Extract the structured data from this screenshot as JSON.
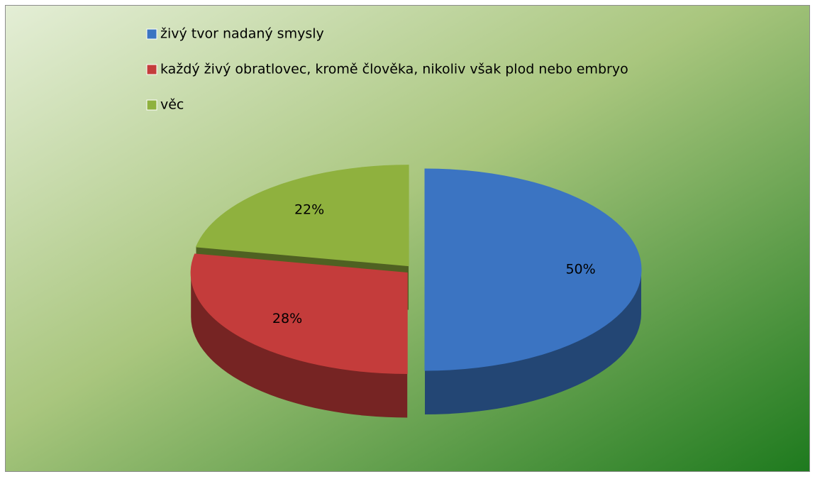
{
  "chart_data": {
    "type": "pie",
    "categories": [
      "živý tvor nadaný smysly",
      "každý živý obratlovec, kromě člověka, nikoliv však plod nebo embryo",
      "věc"
    ],
    "values": [
      50,
      28,
      22
    ],
    "value_labels": [
      "50%",
      "28%",
      "22%"
    ],
    "colors": [
      "#3b74c2",
      "#c43c3b",
      "#8fb13e"
    ],
    "legend": "top-left"
  }
}
